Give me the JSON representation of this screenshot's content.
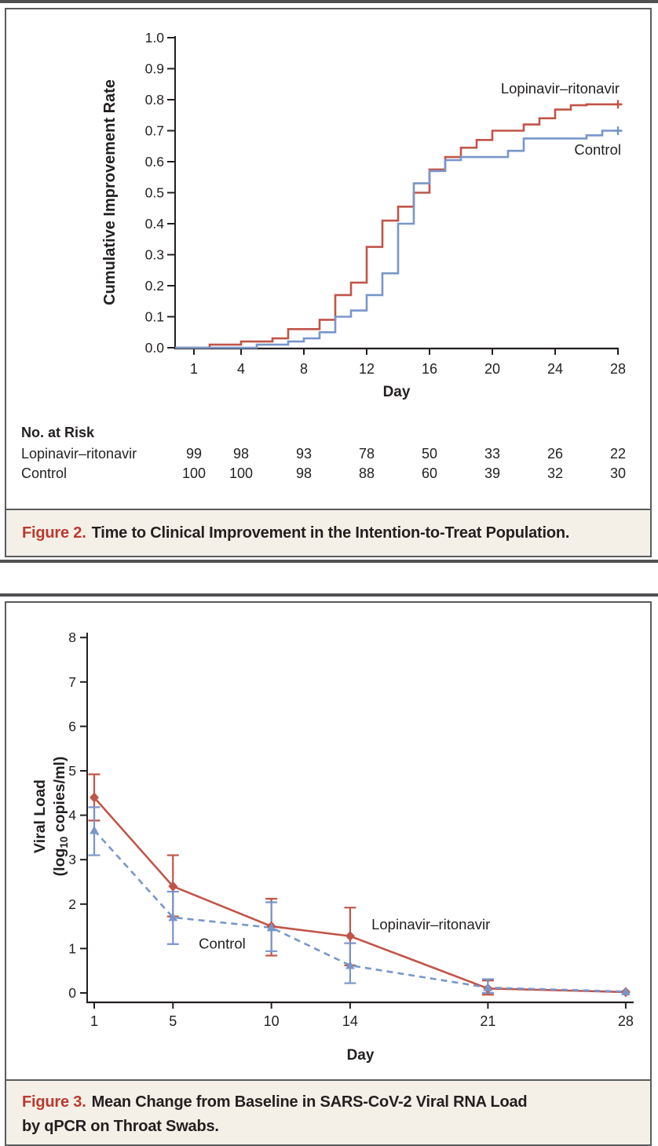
{
  "colors": {
    "red_line": "#c05549",
    "blue_line": "#7896cb",
    "caption_red": "#bb3a30",
    "text": "#231f20",
    "caption_bg": "#f4f0e7",
    "rule": "#4f5052"
  },
  "figure2": {
    "caption_label": "Figure 2.",
    "caption_text": "Time to Clinical Improvement in the Intention-to-Treat Population.",
    "risk_table": {
      "title": "No. at Risk",
      "days": [
        1,
        4,
        8,
        12,
        16,
        20,
        24,
        28
      ],
      "rows": [
        {
          "label": "Lopinavir–ritonavir",
          "values": [
            99,
            98,
            93,
            78,
            50,
            33,
            26,
            22
          ]
        },
        {
          "label": "Control",
          "values": [
            100,
            100,
            98,
            88,
            60,
            39,
            32,
            30
          ]
        }
      ]
    }
  },
  "figure3": {
    "caption_label": "Figure 3.",
    "caption_line1": "Mean Change from Baseline in SARS-CoV-2 Viral RNA Load",
    "caption_line2": "by qPCR on Throat Swabs."
  },
  "chart_data": [
    {
      "type": "line",
      "subtype": "step",
      "title": "",
      "xlabel": "Day",
      "ylabel": "Cumulative Improvement Rate",
      "xlim": [
        0,
        28.5
      ],
      "ylim": [
        0,
        1
      ],
      "grid": false,
      "legend": "inline-labels",
      "xticks": [
        1,
        4,
        8,
        12,
        16,
        20,
        24,
        28
      ],
      "yticks": [
        "0.0",
        "0.1",
        "0.2",
        "0.3",
        "0.4",
        "0.5",
        "0.6",
        "0.7",
        "0.8",
        "0.9",
        "1.0"
      ],
      "series": [
        {
          "name": "Lopinavir–ritonavir",
          "color": "#c05549",
          "line": "solid",
          "censor_mark": "plus",
          "steps": [
            [
              2,
              0.01
            ],
            [
              4,
              0.02
            ],
            [
              6,
              0.03
            ],
            [
              7,
              0.06
            ],
            [
              9,
              0.09
            ],
            [
              10,
              0.17
            ],
            [
              11,
              0.21
            ],
            [
              12,
              0.325
            ],
            [
              13,
              0.41
            ],
            [
              14,
              0.455
            ],
            [
              15,
              0.5
            ],
            [
              16,
              0.575
            ],
            [
              17,
              0.615
            ],
            [
              18,
              0.645
            ],
            [
              19,
              0.67
            ],
            [
              20,
              0.7
            ],
            [
              22,
              0.72
            ],
            [
              23,
              0.74
            ],
            [
              24,
              0.768
            ],
            [
              25,
              0.782
            ],
            [
              26,
              0.785
            ]
          ],
          "end_day": 28,
          "end_value": 0.785
        },
        {
          "name": "Control",
          "color": "#7896cb",
          "line": "solid",
          "censor_mark": "plus",
          "steps": [
            [
              5,
              0.01
            ],
            [
              7,
              0.02
            ],
            [
              8,
              0.03
            ],
            [
              9,
              0.05
            ],
            [
              10,
              0.1
            ],
            [
              11,
              0.12
            ],
            [
              12,
              0.17
            ],
            [
              13,
              0.24
            ],
            [
              14,
              0.4
            ],
            [
              15,
              0.53
            ],
            [
              16,
              0.57
            ],
            [
              17,
              0.605
            ],
            [
              18,
              0.615
            ],
            [
              21,
              0.635
            ],
            [
              22,
              0.675
            ],
            [
              26,
              0.685
            ],
            [
              27,
              0.7
            ]
          ],
          "end_day": 28,
          "end_value": 0.7
        }
      ],
      "annotations": [
        {
          "text": "Lopinavir–ritonavir",
          "day": 28.1,
          "value": 0.82,
          "anchor": "end"
        },
        {
          "text": "Control",
          "day": 28.2,
          "value": 0.623,
          "anchor": "end"
        }
      ]
    },
    {
      "type": "line",
      "subtype": "markers-errorbars",
      "title": "",
      "xlabel": "Day",
      "ylabel_line1": "Viral Load",
      "ylabel_line2": {
        "pre": "(log",
        "sub": "10",
        "post": " copies/ml)"
      },
      "xlim": [
        1,
        28
      ],
      "ylim": [
        0,
        8
      ],
      "grid": false,
      "legend": "inline-labels",
      "xticks": [
        1,
        5,
        10,
        14,
        21,
        28
      ],
      "yticks": [
        "0",
        "1",
        "2",
        "3",
        "4",
        "5",
        "6",
        "7",
        "8"
      ],
      "series": [
        {
          "name": "Lopinavir–ritonavir",
          "color": "#c05549",
          "line": "solid",
          "marker": "diamond",
          "x": [
            1,
            5,
            10,
            14,
            21,
            28
          ],
          "y": [
            4.4,
            2.4,
            1.5,
            1.28,
            0.1,
            0.02
          ],
          "err_lo": [
            3.88,
            1.72,
            0.84,
            0.62,
            -0.04,
            null
          ],
          "err_hi": [
            4.92,
            3.1,
            2.12,
            1.92,
            0.28,
            null
          ]
        },
        {
          "name": "Control",
          "color": "#7896cb",
          "line": "dashed",
          "marker": "triangle",
          "x": [
            1,
            5,
            10,
            14,
            21,
            28
          ],
          "y": [
            3.66,
            1.7,
            1.47,
            0.62,
            0.12,
            0.03
          ],
          "err_lo": [
            3.1,
            1.1,
            0.94,
            0.22,
            0.0,
            null
          ],
          "err_hi": [
            4.18,
            2.28,
            2.04,
            1.12,
            0.31,
            null
          ]
        }
      ],
      "annotations": [
        {
          "text": "Lopinavir–ritonavir",
          "day": 18.1,
          "value": 1.43,
          "anchor": "middle"
        },
        {
          "text": "Control",
          "day": 7.5,
          "value": 1.0,
          "anchor": "middle"
        }
      ]
    }
  ]
}
